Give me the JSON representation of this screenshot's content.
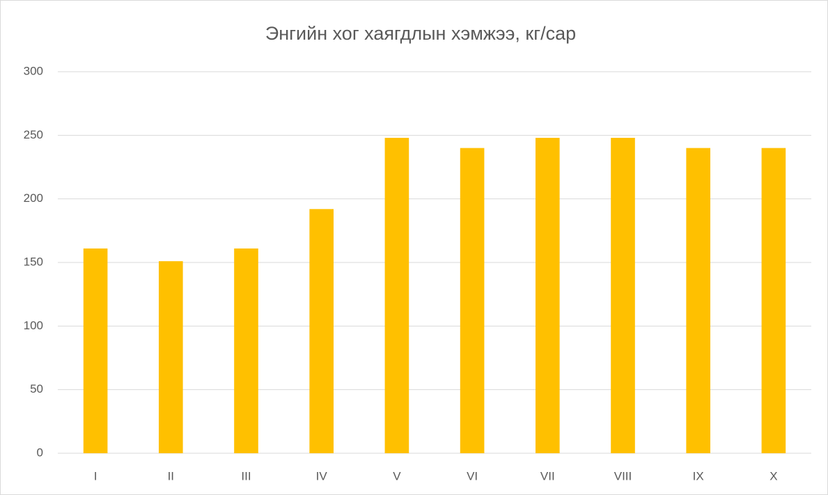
{
  "chart_data": {
    "type": "bar",
    "title": "Энгийн хог хаягдлын хэмжээ, кг/сар",
    "categories": [
      "I",
      "II",
      "III",
      "IV",
      "V",
      "VI",
      "VII",
      "VIII",
      "IX",
      "X"
    ],
    "values": [
      161,
      151,
      161,
      192,
      248,
      240,
      248,
      248,
      240,
      240
    ],
    "color": "#ffc000",
    "ylim": [
      0,
      300
    ],
    "yticks": [
      0,
      50,
      100,
      150,
      200,
      250,
      300
    ],
    "grid": true
  }
}
